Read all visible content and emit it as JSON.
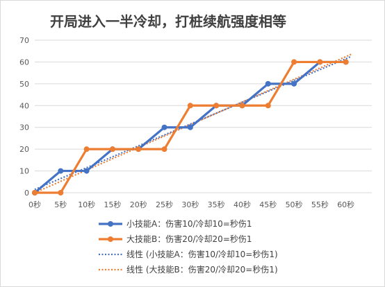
{
  "chart_data": {
    "type": "line",
    "title": "开局进入一半冷却，打桩续航强度相等",
    "xlabel": "",
    "ylabel": "",
    "categories": [
      "0秒",
      "5秒",
      "10秒",
      "15秒",
      "20秒",
      "25秒",
      "30秒",
      "35秒",
      "40秒",
      "45秒",
      "50秒",
      "55秒",
      "60秒"
    ],
    "x": [
      0,
      5,
      10,
      15,
      20,
      25,
      30,
      35,
      40,
      45,
      50,
      55,
      60
    ],
    "ylim": [
      0,
      70
    ],
    "yticks": [
      0,
      10,
      20,
      30,
      40,
      50,
      60,
      70
    ],
    "grid": true,
    "legend_position": "bottom",
    "series": [
      {
        "name": "小技能A：伤害10/冷却10=秒伤1",
        "type": "step",
        "color": "#4472c4",
        "points": [
          [
            0,
            0
          ],
          [
            5,
            10
          ],
          [
            10,
            10
          ],
          [
            15,
            20
          ],
          [
            20,
            20
          ],
          [
            25,
            30
          ],
          [
            30,
            30
          ],
          [
            35,
            40
          ],
          [
            40,
            40
          ],
          [
            45,
            50
          ],
          [
            50,
            50
          ],
          [
            55,
            60
          ],
          [
            60,
            60
          ]
        ]
      },
      {
        "name": "大技能B：伤害20/冷却20=秒伤1",
        "type": "step",
        "color": "#ed7d31",
        "points": [
          [
            0,
            0
          ],
          [
            5,
            0
          ],
          [
            10,
            20
          ],
          [
            15,
            20
          ],
          [
            20,
            20
          ],
          [
            25,
            20
          ],
          [
            30,
            40
          ],
          [
            35,
            40
          ],
          [
            40,
            40
          ],
          [
            45,
            40
          ],
          [
            50,
            60
          ],
          [
            55,
            60
          ],
          [
            60,
            60
          ]
        ]
      },
      {
        "name": "线性 (小技能A：伤害10/冷却10=秒伤1)",
        "type": "trend",
        "color": "#4472c4",
        "from": [
          0,
          1.5
        ],
        "to": [
          61,
          62.5
        ]
      },
      {
        "name": "线性 (大技能B：伤害20/冷却20=秒伤1)",
        "type": "trend",
        "color": "#ed7d31",
        "from": [
          0,
          0
        ],
        "to": [
          61,
          63.5
        ]
      }
    ]
  }
}
